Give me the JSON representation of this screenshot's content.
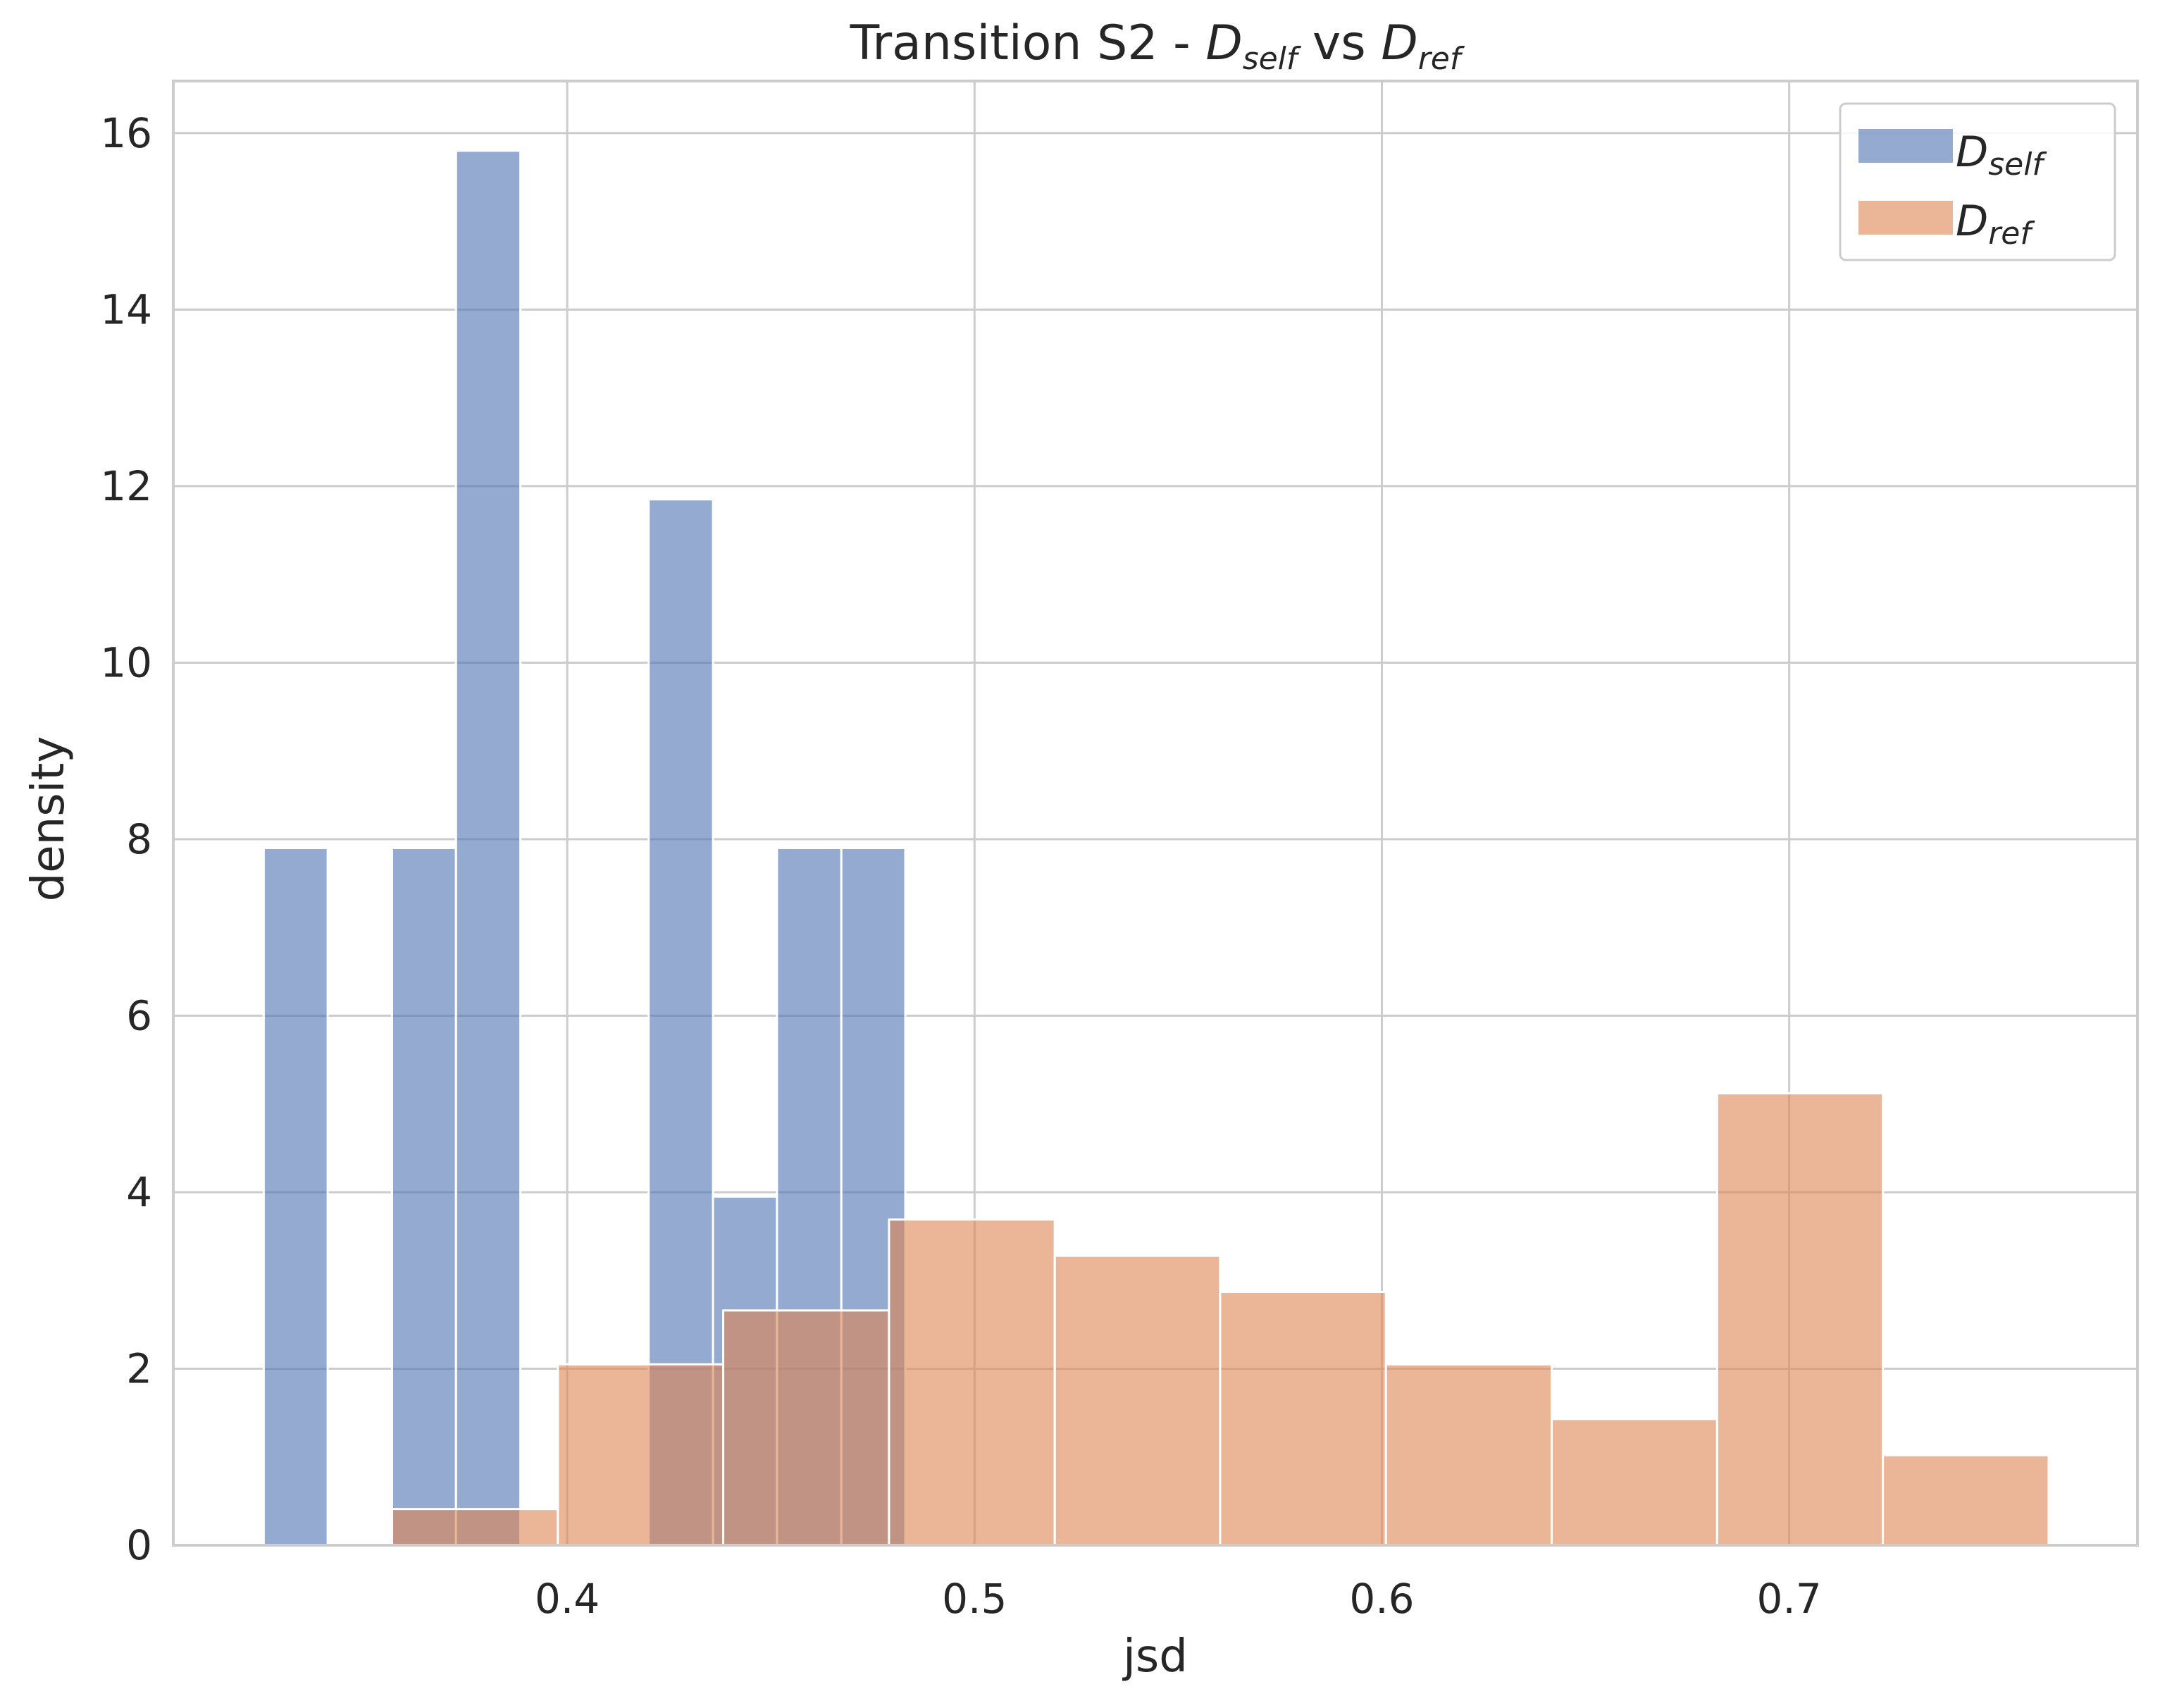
{
  "chart_data": {
    "type": "bar",
    "title": {
      "prefix": "Transition S2 - ",
      "a_main": "D",
      "a_sub": "self",
      "middle": " vs ",
      "b_main": "D",
      "b_sub": "ref"
    },
    "xlabel": "jsd",
    "ylabel": "density",
    "xlim": [
      0.3033,
      0.7855
    ],
    "ylim": [
      0,
      16.59
    ],
    "x_ticks": [
      0.4,
      0.5,
      0.6,
      0.7
    ],
    "x_tick_labels": [
      "0.4",
      "0.5",
      "0.6",
      "0.7"
    ],
    "y_ticks": [
      0,
      2,
      4,
      6,
      8,
      10,
      12,
      14,
      16
    ],
    "y_tick_labels": [
      "0",
      "2",
      "4",
      "6",
      "8",
      "10",
      "12",
      "14",
      "16"
    ],
    "grid": true,
    "legend_position": "top-right",
    "series": [
      {
        "name": "D_self",
        "legend_main": "D",
        "legend_sub": "self",
        "color": "#4c72b0",
        "opacity": 0.6,
        "bins": [
          {
            "x0": 0.3255,
            "x1": 0.3412,
            "value": 7.9
          },
          {
            "x0": 0.3412,
            "x1": 0.357,
            "value": 0
          },
          {
            "x0": 0.357,
            "x1": 0.3727,
            "value": 7.9
          },
          {
            "x0": 0.3727,
            "x1": 0.3885,
            "value": 15.8
          },
          {
            "x0": 0.3885,
            "x1": 0.4043,
            "value": 0
          },
          {
            "x0": 0.4043,
            "x1": 0.42,
            "value": 0
          },
          {
            "x0": 0.42,
            "x1": 0.4358,
            "value": 11.85
          },
          {
            "x0": 0.4358,
            "x1": 0.4515,
            "value": 3.95
          },
          {
            "x0": 0.4515,
            "x1": 0.4673,
            "value": 7.9
          },
          {
            "x0": 0.4673,
            "x1": 0.483,
            "value": 7.9
          }
        ]
      },
      {
        "name": "D_ref",
        "legend_main": "D",
        "legend_sub": "ref",
        "color": "#dd8452",
        "opacity": 0.6,
        "bins": [
          {
            "x0": 0.357,
            "x1": 0.3977,
            "value": 0.41
          },
          {
            "x0": 0.3977,
            "x1": 0.4383,
            "value": 2.05
          },
          {
            "x0": 0.4383,
            "x1": 0.479,
            "value": 2.66
          },
          {
            "x0": 0.479,
            "x1": 0.5197,
            "value": 3.69
          },
          {
            "x0": 0.5197,
            "x1": 0.5603,
            "value": 3.28
          },
          {
            "x0": 0.5603,
            "x1": 0.601,
            "value": 2.87
          },
          {
            "x0": 0.601,
            "x1": 0.6417,
            "value": 2.05
          },
          {
            "x0": 0.6417,
            "x1": 0.6823,
            "value": 1.43
          },
          {
            "x0": 0.6823,
            "x1": 0.723,
            "value": 5.12
          },
          {
            "x0": 0.723,
            "x1": 0.7637,
            "value": 1.02
          }
        ]
      }
    ]
  }
}
